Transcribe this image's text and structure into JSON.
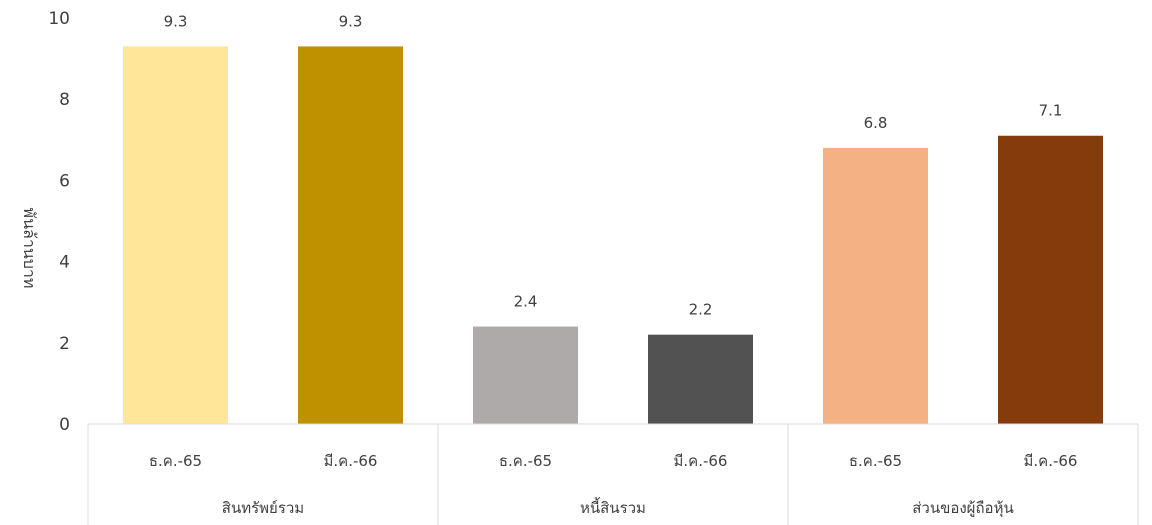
{
  "chart_data": {
    "type": "bar",
    "title": "",
    "ylabel": "พันล้านบาท",
    "ylim": [
      0,
      10
    ],
    "yticks": [
      0,
      2,
      4,
      6,
      8,
      10
    ],
    "grid": false,
    "legend": "none",
    "groups": [
      {
        "label": "สินทรัพย์รวม",
        "bars": [
          {
            "category": "ธ.ค.-65",
            "value": 9.3,
            "label": "9.3",
            "color": "#FFE699"
          },
          {
            "category": "มี.ค.-66",
            "value": 9.3,
            "label": "9.3",
            "color": "#BF9000"
          }
        ]
      },
      {
        "label": "หนี้สินรวม",
        "bars": [
          {
            "category": "ธ.ค.-65",
            "value": 2.4,
            "label": "2.4",
            "color": "#AEAAAA"
          },
          {
            "category": "มี.ค.-66",
            "value": 2.2,
            "label": "2.2",
            "color": "#525252"
          }
        ]
      },
      {
        "label": "ส่วนของผู้ถือหุ้น",
        "bars": [
          {
            "category": "ธ.ค.-65",
            "value": 6.8,
            "label": "6.8",
            "color": "#F4B183"
          },
          {
            "category": "มี.ค.-66",
            "value": 7.1,
            "label": "7.1",
            "color": "#843C0C"
          }
        ]
      }
    ]
  }
}
